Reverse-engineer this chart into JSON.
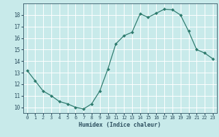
{
  "x": [
    0,
    1,
    2,
    3,
    4,
    5,
    6,
    7,
    8,
    9,
    10,
    11,
    12,
    13,
    14,
    15,
    16,
    17,
    18,
    19,
    20,
    21,
    22,
    23
  ],
  "y": [
    13.2,
    12.3,
    11.4,
    11.0,
    10.5,
    10.3,
    10.0,
    9.85,
    10.3,
    11.4,
    13.3,
    15.5,
    16.2,
    16.5,
    18.1,
    17.8,
    18.15,
    18.5,
    18.45,
    18.0,
    16.6,
    15.0,
    14.7,
    14.2
  ],
  "xlabel": "Humidex (Indice chaleur)",
  "bg_color": "#c8eaea",
  "line_color": "#2e7b6e",
  "grid_color": "#ffffff",
  "text_color": "#2e5060",
  "xlim": [
    -0.5,
    23.5
  ],
  "ylim": [
    9.5,
    19.0
  ],
  "yticks": [
    10,
    11,
    12,
    13,
    14,
    15,
    16,
    17,
    18
  ],
  "xticks": [
    0,
    1,
    2,
    3,
    4,
    5,
    6,
    7,
    8,
    9,
    10,
    11,
    12,
    13,
    14,
    15,
    16,
    17,
    18,
    19,
    20,
    21,
    22,
    23
  ],
  "xtick_labels": [
    "0",
    "1",
    "2",
    "3",
    "4",
    "5",
    "6",
    "7",
    "8",
    "9",
    "10",
    "11",
    "12",
    "13",
    "14",
    "15",
    "16",
    "17",
    "18",
    "19",
    "20",
    "21",
    "22",
    "23"
  ]
}
